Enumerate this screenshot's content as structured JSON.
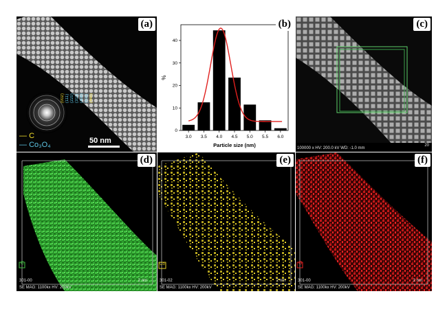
{
  "panels": {
    "a": {
      "label": "(a)",
      "scale_bar": "50 nm",
      "legend": [
        {
          "marker": "—",
          "text": "C",
          "color": "#f4e12a"
        },
        {
          "marker": "—",
          "text": "Co₃O₄",
          "color": "#5fc7e6"
        }
      ],
      "saed_rings": [
        "(002)",
        "(111)",
        "(220)",
        "(311)",
        "(400)",
        "(511)",
        "(440)"
      ]
    },
    "b": {
      "label": "(b)"
    },
    "c": {
      "label": "(c)",
      "footer": "100000 x  HV: 200.0 kV  WD: -1.0 mm",
      "footer_right": "20"
    },
    "d": {
      "label": "(d)",
      "element": "C",
      "element_color": "#3fbf3f",
      "footer_top": "301-00",
      "footer": "SE  MAG: 1100kx  HV: 200kV",
      "scale": "2 nm"
    },
    "e": {
      "label": "(e)",
      "element": "Co",
      "element_color": "#e6d12a",
      "footer_top": "301-02",
      "footer": "SE  MAG: 1100kx  HV: 200kV",
      "scale": "2 nm"
    },
    "f": {
      "label": "(f)",
      "element": "O",
      "element_color": "#e82222",
      "footer_top": "301-00",
      "footer": "SE  MAG: 1100kx  HV: 200kV",
      "scale": "2 nm"
    }
  },
  "chart_data": {
    "type": "bar",
    "xlabel": "Particle size (nm)",
    "ylabel": "%",
    "xlim": [
      2.75,
      6.25
    ],
    "ylim": [
      0,
      47
    ],
    "x_ticks": [
      "3.0",
      "3.5",
      "4.0",
      "4.5",
      "5.0",
      "5.5",
      "6.0"
    ],
    "y_ticks": [
      "0",
      "10",
      "20",
      "30",
      "40"
    ],
    "bins": [
      3.0,
      3.5,
      4.0,
      4.5,
      5.0,
      5.5,
      6.0
    ],
    "values": [
      2.5,
      12.5,
      44.5,
      23.5,
      11.5,
      4.5,
      1.0
    ],
    "bar_width": 0.4,
    "fit": {
      "type": "gaussian",
      "center": 4.05,
      "sigma": 0.33,
      "amplitude": 45.5,
      "baseline": 4.0,
      "color": "#e0201e"
    }
  }
}
